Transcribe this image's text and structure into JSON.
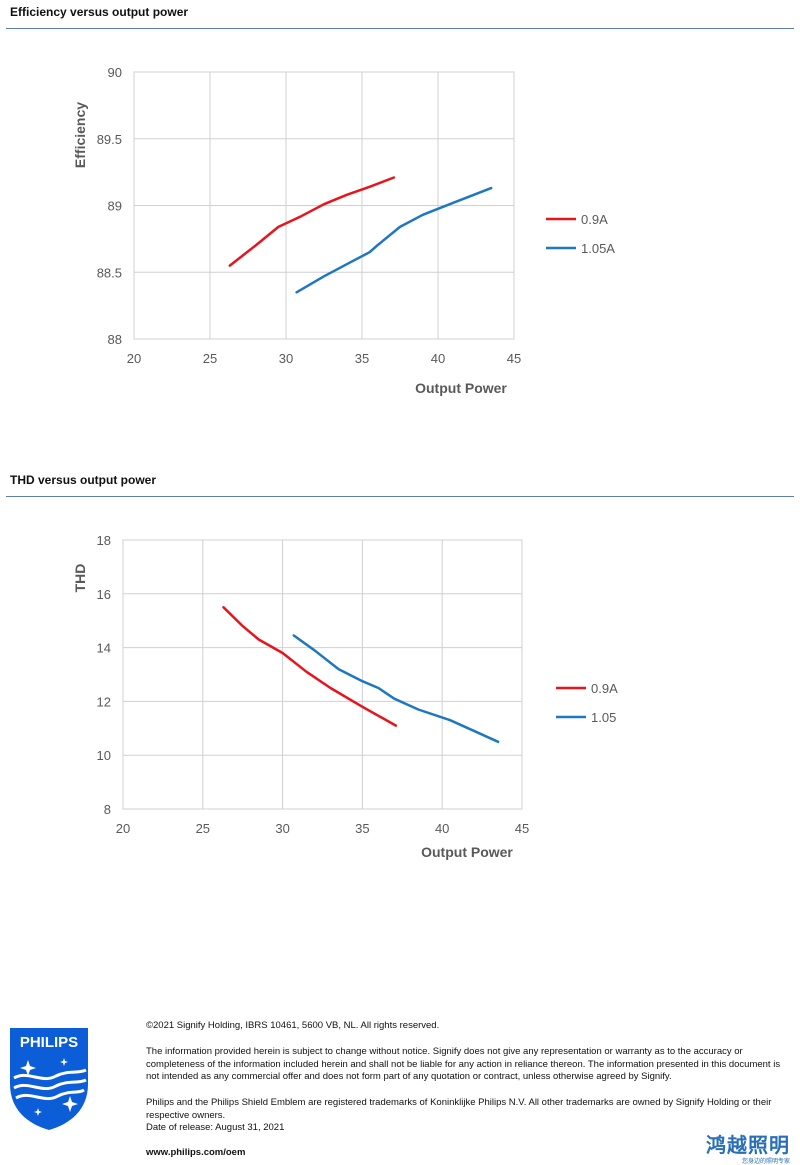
{
  "sections": {
    "efficiency_title": "Efficiency versus output power",
    "thd_title": "THD versus output power"
  },
  "chart_data": [
    {
      "type": "line",
      "xlabel": "Output Power",
      "ylabel": "Efficiency",
      "xlim": [
        20,
        45
      ],
      "ylim": [
        88,
        90
      ],
      "xticks": [
        20,
        25,
        30,
        35,
        40,
        45
      ],
      "yticks": [
        88,
        88.5,
        89,
        89.5,
        90
      ],
      "ytick_labels": [
        "88",
        "88.5",
        "89",
        "89.5",
        "90"
      ],
      "grid": true,
      "legend": "right",
      "series": [
        {
          "name": "0.9A",
          "color": "#e8141c",
          "x": [
            26.3,
            28,
            29.5,
            31,
            32.5,
            34,
            35.5,
            37.1
          ],
          "y": [
            88.55,
            88.7,
            88.84,
            88.92,
            89.01,
            89.08,
            89.14,
            89.21
          ]
        },
        {
          "name": "1.05A",
          "color": "#1f77c0",
          "x": [
            30.7,
            32.5,
            34,
            35.5,
            36,
            37.5,
            39,
            41,
            43.5
          ],
          "y": [
            88.35,
            88.47,
            88.56,
            88.65,
            88.7,
            88.84,
            88.93,
            89.02,
            89.13
          ]
        }
      ]
    },
    {
      "type": "line",
      "xlabel": "Output Power",
      "ylabel": "THD",
      "xlim": [
        20,
        45
      ],
      "ylim": [
        8,
        18
      ],
      "xticks": [
        20,
        25,
        30,
        35,
        40,
        45
      ],
      "yticks": [
        8,
        10,
        12,
        14,
        16,
        18
      ],
      "ytick_labels": [
        "8",
        "10",
        "12",
        "14",
        "16",
        "18"
      ],
      "grid": true,
      "legend": "right",
      "series": [
        {
          "name": "0.9A",
          "color": "#e8141c",
          "x": [
            26.3,
            27.5,
            28.5,
            30,
            31.5,
            33,
            35,
            37.1
          ],
          "y": [
            15.5,
            14.8,
            14.3,
            13.8,
            13.1,
            12.5,
            11.8,
            11.1
          ]
        },
        {
          "name": "1.05",
          "color": "#1f77c0",
          "x": [
            30.7,
            32,
            33.5,
            35,
            36,
            37,
            38.5,
            40.5,
            43.5
          ],
          "y": [
            14.45,
            13.9,
            13.2,
            12.75,
            12.5,
            12.1,
            11.7,
            11.3,
            10.5
          ]
        }
      ]
    }
  ],
  "footer": {
    "copyright": "©2021 Signify Holding, IBRS 10461, 5600 VB, NL. All rights reserved.",
    "disclaimer": "The information provided herein is subject to change without notice. Signify does not give any representation or warranty as to the accuracy or completeness of the information included herein and shall not be liable for any action in reliance thereon. The information presented in this document is not intended as any commercial offer and does not form part of any quotation or contract, unless otherwise agreed by Signify.",
    "trademarks": "Philips and the Philips Shield Emblem are registered trademarks of Koninklijke Philips N.V. All other trademarks are owned by Signify Holding or their respective owners.",
    "release": "Date of release: August 31, 2021",
    "website": "www.philips.com/oem",
    "logo_text": "PHILIPS",
    "cn_name": "鸿越照明",
    "cn_sub": "您身边的照明专家"
  },
  "colors": {
    "rule": "#5b7fb8",
    "philips_blue": "#0b5ed7",
    "cn_blue": "#2a6fb5"
  }
}
